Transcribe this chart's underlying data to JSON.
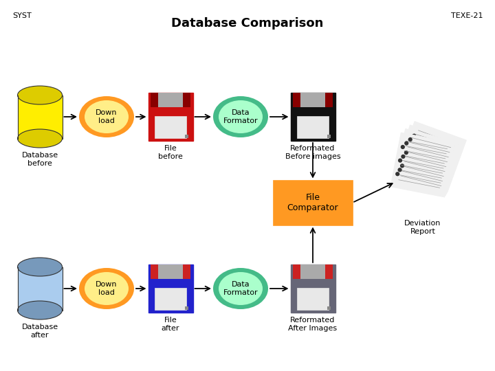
{
  "title": "Database Comparison",
  "syst_label": "SYST",
  "texe_label": "TEXE-21",
  "bg_color": "#ffffff",
  "title_fontsize": 13,
  "header_fontsize": 8,
  "colors": {
    "yellow": "#FFEE00",
    "yellow_top": "#DDCC00",
    "blue_light": "#AACCEE",
    "blue_top": "#7799BB",
    "orange": "#FF9922",
    "orange_inner": "#FFEE88",
    "green_outer": "#44BB88",
    "green_inner": "#AAFFCC",
    "red_floppy": "#CC1111",
    "blue_floppy": "#2222CC",
    "black_floppy": "#111111",
    "gray_floppy": "#666677",
    "shutter_gray": "#AAAAAA",
    "label_gray": "#DDDDDD",
    "orange_box": "#FF9922",
    "white": "#FFFFFF",
    "black": "#000000"
  }
}
